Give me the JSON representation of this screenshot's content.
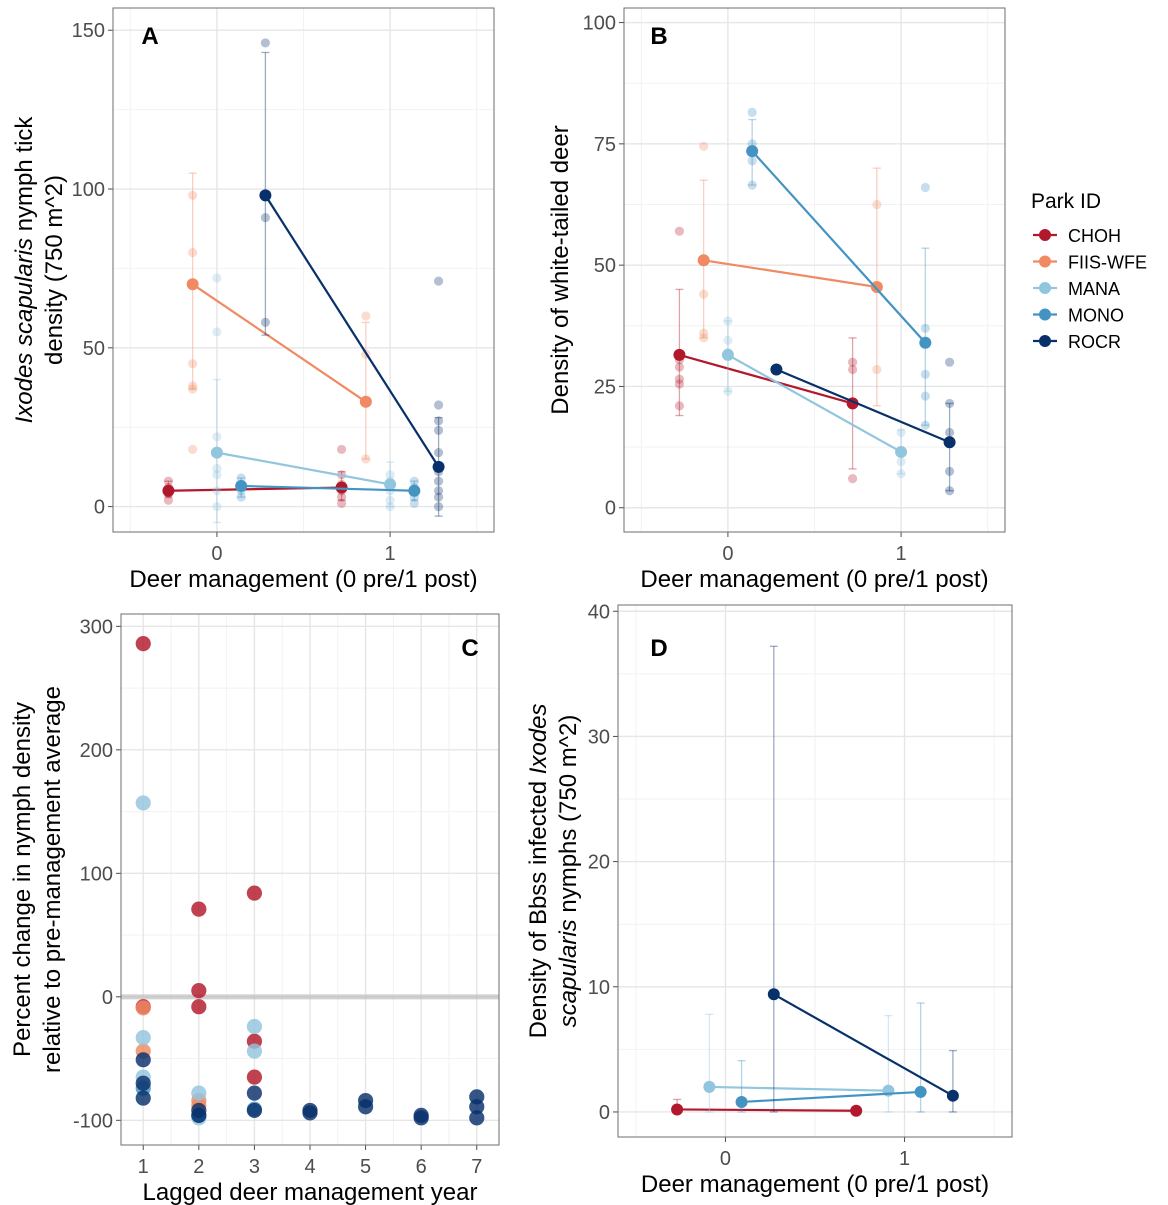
{
  "legend": {
    "title": "Park ID",
    "items": [
      {
        "name": "CHOH",
        "color": "#b2182b"
      },
      {
        "name": "FIIS-WFE",
        "color": "#ef8a62"
      },
      {
        "name": "MANA",
        "color": "#92c5de"
      },
      {
        "name": "MONO",
        "color": "#4393c3"
      },
      {
        "name": "ROCR",
        "color": "#08306b"
      }
    ]
  },
  "chart_data": [
    {
      "panel": "A",
      "type": "scatter",
      "xlabel": "Deer management (0 pre/1 post)",
      "ylabel_italic": "Ixodes scapularis",
      "ylabel_rest": " nymph tick",
      "ylabel_line2": "density (750 m^2)",
      "xlim": [
        -0.6,
        1.6
      ],
      "ylim": [
        -8,
        157
      ],
      "xticks": [
        0,
        1
      ],
      "yticks": [
        0,
        50,
        100,
        150
      ],
      "series": [
        {
          "name": "CHOH",
          "color": "#b2182b",
          "x": [
            -0.28,
            0.72
          ],
          "y": [
            5,
            6
          ],
          "err": [
            [
              3,
              8
            ],
            [
              2,
              11
            ]
          ],
          "raw": [
            {
              "x": -0.28,
              "y": [
                2,
                4,
                6,
                8
              ]
            },
            {
              "x": 0.72,
              "y": [
                1,
                3,
                5,
                7,
                10,
                18
              ]
            }
          ]
        },
        {
          "name": "FIIS-WFE",
          "color": "#ef8a62",
          "x": [
            -0.14,
            0.86
          ],
          "y": [
            70,
            33
          ],
          "err": [
            [
              37,
              105
            ],
            [
              15,
              58
            ]
          ],
          "raw": [
            {
              "x": -0.14,
              "y": [
                18,
                37,
                38,
                45,
                80,
                98
              ]
            },
            {
              "x": 0.86,
              "y": [
                15,
                48,
                60
              ]
            }
          ]
        },
        {
          "name": "MANA",
          "color": "#92c5de",
          "x": [
            0.0,
            1.0
          ],
          "y": [
            17,
            7
          ],
          "err": [
            [
              -5,
              40
            ],
            [
              0,
              14
            ]
          ],
          "raw": [
            {
              "x": 0.0,
              "y": [
                0,
                5,
                10,
                12,
                22,
                55,
                72
              ]
            },
            {
              "x": 1.0,
              "y": [
                0,
                2,
                5,
                8,
                10
              ]
            }
          ]
        },
        {
          "name": "MONO",
          "color": "#4393c3",
          "x": [
            0.14,
            1.14
          ],
          "y": [
            6.5,
            5
          ],
          "err": [
            [
              3,
              9
            ],
            [
              2,
              8
            ]
          ],
          "raw": [
            {
              "x": 0.14,
              "y": [
                3,
                5,
                7,
                9
              ]
            },
            {
              "x": 1.14,
              "y": [
                1,
                3,
                6,
                8
              ]
            }
          ]
        },
        {
          "name": "ROCR",
          "color": "#08306b",
          "x": [
            0.28,
            1.28
          ],
          "y": [
            98,
            12.5
          ],
          "err": [
            [
              54,
              143
            ],
            [
              -3,
              28
            ]
          ],
          "raw": [
            {
              "x": 0.28,
              "y": [
                58,
                91,
                146
              ]
            },
            {
              "x": 1.28,
              "y": [
                0,
                3,
                5,
                8,
                11,
                17,
                24,
                27,
                32,
                71
              ]
            }
          ]
        }
      ]
    },
    {
      "panel": "B",
      "type": "scatter",
      "xlabel": "Deer management (0 pre/1 post)",
      "ylabel": "Density of white-tailed deer",
      "xlim": [
        -0.6,
        1.6
      ],
      "ylim": [
        -5,
        103
      ],
      "xticks": [
        0,
        1
      ],
      "yticks": [
        0,
        25,
        50,
        75,
        100
      ],
      "series": [
        {
          "name": "CHOH",
          "color": "#b2182b",
          "x": [
            -0.28,
            0.72
          ],
          "y": [
            31.5,
            21.5
          ],
          "err": [
            [
              19,
              45
            ],
            [
              8,
              35
            ]
          ],
          "raw": [
            {
              "x": -0.28,
              "y": [
                21,
                25.5,
                26.5,
                29,
                30.5,
                57
              ]
            },
            {
              "x": 0.72,
              "y": [
                6,
                28.5,
                30
              ]
            }
          ]
        },
        {
          "name": "FIIS-WFE",
          "color": "#ef8a62",
          "x": [
            -0.14,
            0.86
          ],
          "y": [
            51,
            45.5
          ],
          "err": [
            [
              35,
              67.5
            ],
            [
              21,
              70
            ]
          ],
          "raw": [
            {
              "x": -0.14,
              "y": [
                35,
                36,
                44,
                74.5
              ]
            },
            {
              "x": 0.86,
              "y": [
                28.5,
                62.5
              ]
            }
          ]
        },
        {
          "name": "MANA",
          "color": "#92c5de",
          "x": [
            0.0,
            1.0
          ],
          "y": [
            31.5,
            11.5
          ],
          "err": [
            [
              24,
              38.5
            ],
            [
              7,
              16
            ]
          ],
          "raw": [
            {
              "x": 0.0,
              "y": [
                24,
                32,
                34.5,
                38.5
              ]
            },
            {
              "x": 1.0,
              "y": [
                7,
                9.5,
                15.5
              ]
            }
          ]
        },
        {
          "name": "MONO",
          "color": "#4393c3",
          "x": [
            0.14,
            1.14
          ],
          "y": [
            73.5,
            34
          ],
          "err": [
            [
              66.5,
              80
            ],
            [
              17,
              53.5
            ]
          ],
          "raw": [
            {
              "x": 0.14,
              "y": [
                66.5,
                71.5,
                75,
                81.5
              ]
            },
            {
              "x": 1.14,
              "y": [
                17,
                23,
                27.5,
                37,
                66
              ]
            }
          ]
        },
        {
          "name": "ROCR",
          "color": "#08306b",
          "x": [
            0.28,
            1.28
          ],
          "y": [
            28.5,
            13.5
          ],
          "err": [
            [
              28.5,
              28.5
            ],
            [
              3.5,
              21.5
            ]
          ],
          "raw": [
            {
              "x": 1.28,
              "y": [
                3.5,
                7.5,
                15.5,
                21.5,
                30
              ]
            }
          ]
        }
      ]
    },
    {
      "panel": "C",
      "type": "scatter",
      "xlabel": "Lagged deer management year",
      "ylabel": "Percent change in nymph density",
      "ylabel_line2": "relative to pre-management average",
      "xlim": [
        0.6,
        7.4
      ],
      "ylim": [
        -120,
        310
      ],
      "xticks": [
        1,
        2,
        3,
        4,
        5,
        6,
        7
      ],
      "yticks": [
        -100,
        0,
        100,
        200,
        300
      ],
      "reference_line": 0,
      "series": [
        {
          "name": "CHOH",
          "color": "#b2182b",
          "points": [
            [
              1,
              286
            ],
            [
              1,
              -8
            ],
            [
              2,
              71
            ],
            [
              2,
              5
            ],
            [
              2,
              -8
            ],
            [
              3,
              84
            ],
            [
              3,
              -36
            ],
            [
              3,
              -65
            ]
          ]
        },
        {
          "name": "FIIS-WFE",
          "color": "#ef8a62",
          "points": [
            [
              1,
              -9
            ],
            [
              1,
              -44
            ],
            [
              2,
              -84
            ],
            [
              2,
              -88
            ]
          ]
        },
        {
          "name": "MANA",
          "color": "#92c5de",
          "points": [
            [
              1,
              157
            ],
            [
              1,
              -33
            ],
            [
              1,
              -65
            ],
            [
              2,
              -78
            ],
            [
              2,
              -98
            ],
            [
              3,
              -24
            ],
            [
              3,
              -44
            ]
          ]
        },
        {
          "name": "MONO",
          "color": "#4393c3",
          "points": [
            [
              1,
              -74
            ],
            [
              2,
              -96
            ],
            [
              3,
              -91
            ]
          ]
        },
        {
          "name": "ROCR",
          "color": "#08306b",
          "points": [
            [
              1,
              -51
            ],
            [
              1,
              -70
            ],
            [
              1,
              -82
            ],
            [
              2,
              -92
            ],
            [
              2,
              -96
            ],
            [
              3,
              -78
            ],
            [
              3,
              -92
            ],
            [
              4,
              -92
            ],
            [
              4,
              -94
            ],
            [
              5,
              -84
            ],
            [
              5,
              -89
            ],
            [
              6,
              -96
            ],
            [
              6,
              -98
            ],
            [
              7,
              -81
            ],
            [
              7,
              -89
            ],
            [
              7,
              -98
            ]
          ]
        }
      ]
    },
    {
      "panel": "D",
      "type": "scatter",
      "xlabel": "Deer management (0 pre/1 post)",
      "ylabel_pre": "Density of Bbss infected ",
      "ylabel_italic": "Ixodes",
      "ylabel_line2_italic": "scapularis",
      "ylabel_line2_rest": " nymphs (750 m^2)",
      "xlim": [
        -0.6,
        1.6
      ],
      "ylim": [
        -2,
        40.5
      ],
      "xticks": [
        0,
        1
      ],
      "yticks": [
        0,
        10,
        20,
        30,
        40
      ],
      "series": [
        {
          "name": "CHOH",
          "color": "#b2182b",
          "x": [
            -0.27,
            0.73
          ],
          "y": [
            0.2,
            0.1
          ],
          "err": [
            [
              0,
              1
            ],
            [
              0,
              0.2
            ]
          ]
        },
        {
          "name": "MANA",
          "color": "#92c5de",
          "x": [
            -0.09,
            0.91
          ],
          "y": [
            2.0,
            1.7
          ],
          "err": [
            [
              0,
              7.8
            ],
            [
              0,
              7.7
            ]
          ]
        },
        {
          "name": "MONO",
          "color": "#4393c3",
          "x": [
            0.09,
            1.09
          ],
          "y": [
            0.8,
            1.6
          ],
          "err": [
            [
              0,
              4.1
            ],
            [
              0,
              8.7
            ]
          ]
        },
        {
          "name": "ROCR",
          "color": "#08306b",
          "x": [
            0.27,
            1.27
          ],
          "y": [
            9.4,
            1.3
          ],
          "err": [
            [
              0,
              37.2
            ],
            [
              0,
              4.9
            ]
          ]
        }
      ]
    }
  ]
}
